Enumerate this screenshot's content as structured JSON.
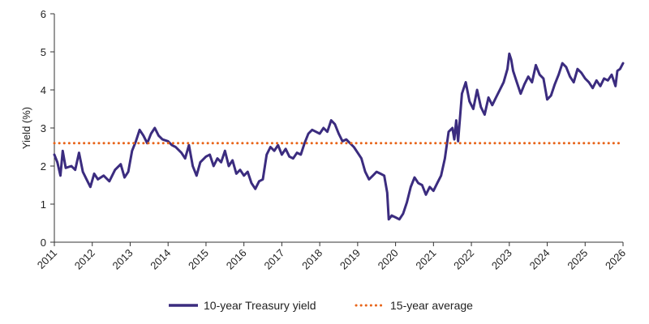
{
  "chart_data": {
    "type": "line",
    "ylabel": "Yield (%)",
    "xlabel": "",
    "ylim": [
      0,
      6
    ],
    "yticks": [
      0,
      1,
      2,
      3,
      4,
      5,
      6
    ],
    "xlim": [
      2011,
      2026
    ],
    "xticks": [
      "2011",
      "2012",
      "2013",
      "2014",
      "2015",
      "2016",
      "2017",
      "2018",
      "2019",
      "2020",
      "2021",
      "2022",
      "2023",
      "2024",
      "2025",
      "2026"
    ],
    "legend_position": "bottom",
    "series": [
      {
        "name": "10-year Treasury yield",
        "color": "#3b2c7f",
        "style": "solid",
        "points": [
          [
            2011.0,
            2.3
          ],
          [
            2011.08,
            2.1
          ],
          [
            2011.16,
            1.75
          ],
          [
            2011.22,
            2.4
          ],
          [
            2011.3,
            1.95
          ],
          [
            2011.45,
            2.0
          ],
          [
            2011.55,
            1.9
          ],
          [
            2011.65,
            2.35
          ],
          [
            2011.75,
            1.85
          ],
          [
            2011.85,
            1.65
          ],
          [
            2011.95,
            1.45
          ],
          [
            2012.05,
            1.8
          ],
          [
            2012.15,
            1.65
          ],
          [
            2012.3,
            1.75
          ],
          [
            2012.45,
            1.6
          ],
          [
            2012.6,
            1.9
          ],
          [
            2012.75,
            2.05
          ],
          [
            2012.85,
            1.7
          ],
          [
            2012.95,
            1.85
          ],
          [
            2013.05,
            2.4
          ],
          [
            2013.15,
            2.65
          ],
          [
            2013.25,
            2.95
          ],
          [
            2013.35,
            2.8
          ],
          [
            2013.45,
            2.6
          ],
          [
            2013.55,
            2.85
          ],
          [
            2013.65,
            3.0
          ],
          [
            2013.75,
            2.8
          ],
          [
            2013.85,
            2.7
          ],
          [
            2014.0,
            2.65
          ],
          [
            2014.1,
            2.55
          ],
          [
            2014.2,
            2.5
          ],
          [
            2014.35,
            2.35
          ],
          [
            2014.45,
            2.2
          ],
          [
            2014.55,
            2.55
          ],
          [
            2014.65,
            2.0
          ],
          [
            2014.75,
            1.75
          ],
          [
            2014.85,
            2.1
          ],
          [
            2015.0,
            2.25
          ],
          [
            2015.1,
            2.3
          ],
          [
            2015.2,
            2.0
          ],
          [
            2015.3,
            2.2
          ],
          [
            2015.4,
            2.1
          ],
          [
            2015.5,
            2.4
          ],
          [
            2015.6,
            2.0
          ],
          [
            2015.7,
            2.15
          ],
          [
            2015.8,
            1.8
          ],
          [
            2015.9,
            1.9
          ],
          [
            2016.0,
            1.75
          ],
          [
            2016.1,
            1.85
          ],
          [
            2016.2,
            1.55
          ],
          [
            2016.3,
            1.4
          ],
          [
            2016.4,
            1.6
          ],
          [
            2016.5,
            1.65
          ],
          [
            2016.6,
            2.3
          ],
          [
            2016.7,
            2.5
          ],
          [
            2016.8,
            2.4
          ],
          [
            2016.9,
            2.55
          ],
          [
            2017.0,
            2.3
          ],
          [
            2017.1,
            2.45
          ],
          [
            2017.2,
            2.25
          ],
          [
            2017.3,
            2.2
          ],
          [
            2017.4,
            2.35
          ],
          [
            2017.5,
            2.3
          ],
          [
            2017.6,
            2.6
          ],
          [
            2017.7,
            2.85
          ],
          [
            2017.8,
            2.95
          ],
          [
            2017.9,
            2.9
          ],
          [
            2018.0,
            2.85
          ],
          [
            2018.1,
            3.0
          ],
          [
            2018.2,
            2.9
          ],
          [
            2018.3,
            3.2
          ],
          [
            2018.4,
            3.1
          ],
          [
            2018.5,
            2.85
          ],
          [
            2018.6,
            2.65
          ],
          [
            2018.7,
            2.7
          ],
          [
            2018.8,
            2.6
          ],
          [
            2018.9,
            2.5
          ],
          [
            2019.0,
            2.35
          ],
          [
            2019.1,
            2.2
          ],
          [
            2019.2,
            1.85
          ],
          [
            2019.3,
            1.65
          ],
          [
            2019.4,
            1.75
          ],
          [
            2019.5,
            1.85
          ],
          [
            2019.6,
            1.8
          ],
          [
            2019.7,
            1.75
          ],
          [
            2019.78,
            1.3
          ],
          [
            2019.82,
            0.6
          ],
          [
            2019.9,
            0.7
          ],
          [
            2020.0,
            0.65
          ],
          [
            2020.1,
            0.6
          ],
          [
            2020.2,
            0.75
          ],
          [
            2020.3,
            1.05
          ],
          [
            2020.4,
            1.45
          ],
          [
            2020.5,
            1.7
          ],
          [
            2020.6,
            1.55
          ],
          [
            2020.7,
            1.5
          ],
          [
            2020.8,
            1.25
          ],
          [
            2020.9,
            1.45
          ],
          [
            2021.0,
            1.35
          ],
          [
            2021.1,
            1.55
          ],
          [
            2021.2,
            1.75
          ],
          [
            2021.3,
            2.2
          ],
          [
            2021.4,
            2.9
          ],
          [
            2021.5,
            3.0
          ],
          [
            2021.55,
            2.7
          ],
          [
            2021.6,
            3.2
          ],
          [
            2021.65,
            2.65
          ],
          [
            2021.75,
            3.9
          ],
          [
            2021.85,
            4.2
          ],
          [
            2021.95,
            3.7
          ],
          [
            2022.05,
            3.5
          ],
          [
            2022.15,
            4.0
          ],
          [
            2022.25,
            3.55
          ],
          [
            2022.35,
            3.35
          ],
          [
            2022.45,
            3.8
          ],
          [
            2022.55,
            3.6
          ],
          [
            2022.65,
            3.8
          ],
          [
            2022.75,
            4.0
          ],
          [
            2022.85,
            4.2
          ],
          [
            2022.95,
            4.55
          ],
          [
            2023.0,
            4.95
          ],
          [
            2023.05,
            4.8
          ],
          [
            2023.1,
            4.5
          ],
          [
            2023.2,
            4.2
          ],
          [
            2023.3,
            3.9
          ],
          [
            2023.4,
            4.15
          ],
          [
            2023.5,
            4.35
          ],
          [
            2023.6,
            4.2
          ],
          [
            2023.7,
            4.65
          ],
          [
            2023.8,
            4.4
          ],
          [
            2023.9,
            4.3
          ],
          [
            2024.0,
            3.75
          ],
          [
            2024.1,
            3.85
          ],
          [
            2024.2,
            4.15
          ],
          [
            2024.3,
            4.4
          ],
          [
            2024.4,
            4.7
          ],
          [
            2024.5,
            4.6
          ],
          [
            2024.6,
            4.35
          ],
          [
            2024.7,
            4.2
          ],
          [
            2024.8,
            4.55
          ],
          [
            2024.9,
            4.45
          ],
          [
            2025.0,
            4.3
          ],
          [
            2025.1,
            4.2
          ],
          [
            2025.2,
            4.05
          ],
          [
            2025.3,
            4.25
          ],
          [
            2025.4,
            4.1
          ],
          [
            2025.5,
            4.3
          ],
          [
            2025.6,
            4.25
          ],
          [
            2025.7,
            4.4
          ],
          [
            2025.8,
            4.1
          ],
          [
            2025.85,
            4.5
          ],
          [
            2025.92,
            4.55
          ],
          [
            2026.0,
            4.7
          ]
        ]
      },
      {
        "name": "15-year average",
        "color": "#e8651a",
        "style": "dotted",
        "value": 2.6
      }
    ]
  }
}
